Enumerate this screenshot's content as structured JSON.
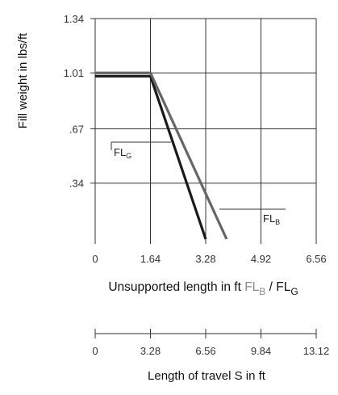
{
  "chart_data": [
    {
      "type": "line",
      "ylabel": "Fill weight in lbs/ft",
      "xlabel_prefix": "Unsupported length in ft ",
      "xlabel_b": {
        "base": "FL",
        "sub": "B"
      },
      "xlabel_sep": " / ",
      "xlabel_g": {
        "base": "FL",
        "sub": "G"
      },
      "x_ticks": [
        "0",
        "1.64",
        "3.28",
        "4.92",
        "6.56"
      ],
      "y_ticks": [
        ".34",
        ".67",
        "1.01",
        "1.34"
      ],
      "xlim": [
        0,
        6.56
      ],
      "ylim": [
        0,
        1.34
      ],
      "x_tick_values": [
        0,
        1.64,
        3.28,
        4.92,
        6.56
      ],
      "y_tick_values": [
        0.34,
        0.67,
        1.01,
        1.34
      ],
      "grid": true,
      "series": [
        {
          "name": "FL_G",
          "label_base": "FL",
          "label_sub": "G",
          "color": "#1a1a1a",
          "x": [
            0,
            1.64,
            3.28
          ],
          "y": [
            0.99,
            0.99,
            0
          ]
        },
        {
          "name": "FL_B",
          "label_base": "FL",
          "label_sub": "B",
          "color": "#666666",
          "x": [
            0,
            1.64,
            3.9
          ],
          "y": [
            1.01,
            1.01,
            0
          ]
        }
      ]
    },
    {
      "type": "axis",
      "xlabel": "Length of travel S in ft",
      "x_ticks": [
        "0",
        "3.28",
        "6.56",
        "9.84",
        "13.12"
      ],
      "x_tick_values": [
        0,
        3.28,
        6.56,
        9.84,
        13.12
      ],
      "xlim": [
        0,
        13.12
      ]
    }
  ],
  "colors": {
    "text": "#1a1a1a",
    "grid": "#333333",
    "fl_g_line": "#1a1a1a",
    "fl_b_line": "#666666",
    "fl_b_label": "#888888"
  }
}
